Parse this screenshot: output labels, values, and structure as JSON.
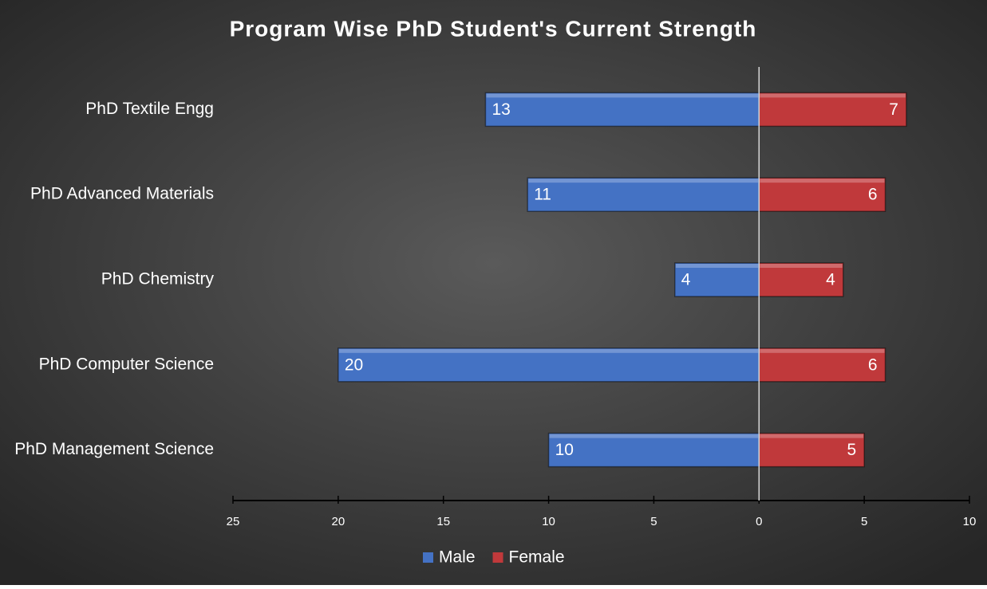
{
  "chart_data": {
    "type": "bar",
    "orientation": "horizontal",
    "title": "Program Wise PhD Student's Current Strength",
    "categories": [
      "PhD Textile Engg",
      "PhD Advanced Materials",
      "PhD Chemistry",
      "PhD Computer Science",
      "PhD Management Science"
    ],
    "series": [
      {
        "name": "Male",
        "color": "#4472c4",
        "values": [
          -13,
          -11,
          -4,
          -20,
          -10
        ],
        "value_labels": [
          "13",
          "11",
          "4",
          "20",
          "10"
        ]
      },
      {
        "name": "Female",
        "color": "#c0393b",
        "values": [
          7,
          6,
          4,
          6,
          5
        ]
      }
    ],
    "xlim": [
      -25,
      10
    ],
    "xticks": [
      {
        "value": -25,
        "label": "25"
      },
      {
        "value": -20,
        "label": "20"
      },
      {
        "value": -15,
        "label": "15"
      },
      {
        "value": -10,
        "label": "10"
      },
      {
        "value": -5,
        "label": "5"
      },
      0,
      5,
      10
    ],
    "legend": "bottom",
    "grid": false
  }
}
